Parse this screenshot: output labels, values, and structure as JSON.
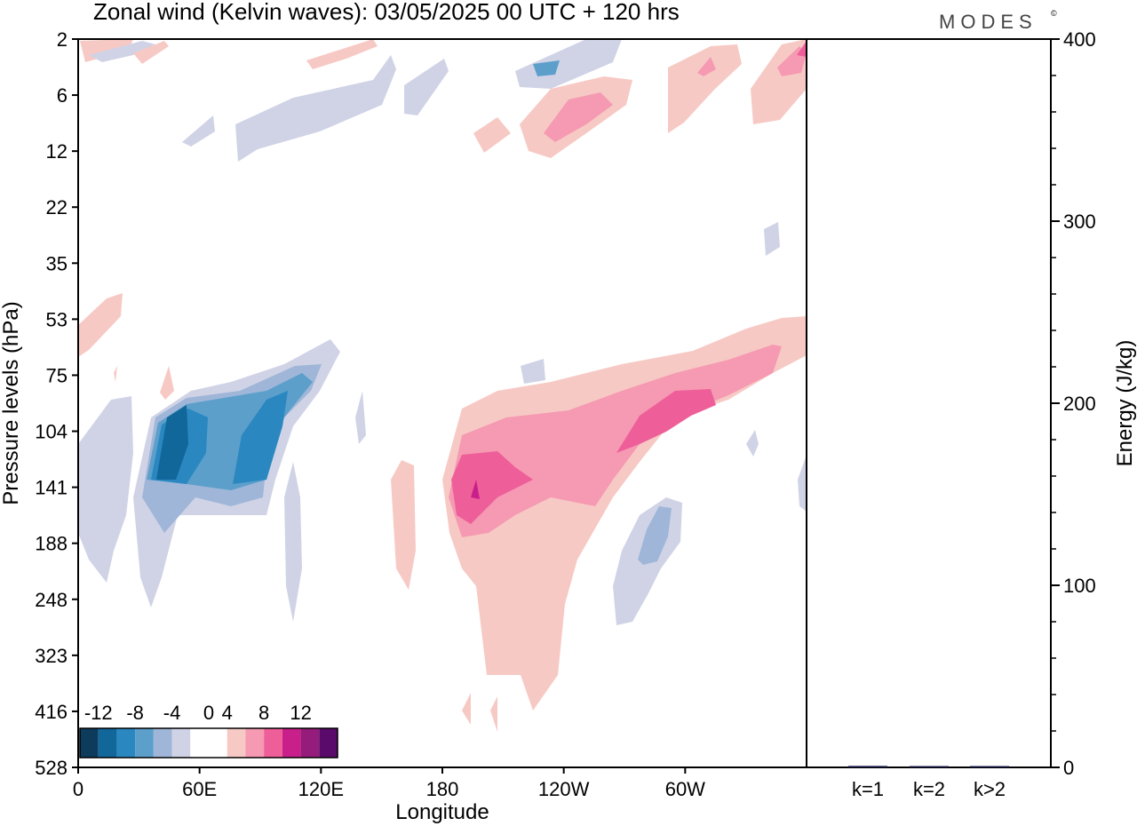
{
  "title": "Zonal wind (Kelvin waves):  03/05/2025  00 UTC  + 120 hrs",
  "brand": "MODES",
  "brand_mark": "©",
  "colors": {
    "neg": [
      "#0d3b5c",
      "#11669a",
      "#2a87c0",
      "#5c9fcb",
      "#9fb6d8",
      "#d0d3e6"
    ],
    "pos": [
      "#f7c9c4",
      "#f59ab2",
      "#ee5f9a",
      "#c81f8a",
      "#951c7a",
      "#5a0a6b"
    ],
    "zero": "#ffffff",
    "frame": "#000000"
  },
  "chart_data": [
    {
      "type": "heatmap",
      "title": "Zonal wind (Kelvin waves):  03/05/2025  00 UTC  + 120 hrs",
      "xlabel": "Longitude",
      "ylabel": "Pressure levels (hPa)",
      "x_ticks": [
        "0",
        "60E",
        "120E",
        "180",
        "120W",
        "60W"
      ],
      "x_tick_values": [
        0,
        60,
        120,
        180,
        240,
        300
      ],
      "xlim": [
        0,
        360
      ],
      "y_ticks": [
        "2",
        "6",
        "12",
        "22",
        "35",
        "53",
        "75",
        "104",
        "141",
        "188",
        "248",
        "323",
        "416",
        "528"
      ],
      "y_scale": "model levels (non-linear)",
      "colorbar_labels": [
        "-12",
        "-8",
        "-4",
        "0",
        "4",
        "8",
        "12"
      ],
      "colorbar_levels": [
        -14,
        -12,
        -10,
        -8,
        -6,
        -4,
        -2,
        2,
        4,
        6,
        8,
        10,
        12,
        14
      ],
      "features": [
        {
          "sign": "negative",
          "peak": -10,
          "lon": 48,
          "level": "110-141"
        },
        {
          "sign": "negative",
          "peak": -8,
          "lon": 90,
          "level": "104-141"
        },
        {
          "sign": "positive",
          "peak": 8,
          "lon": 285,
          "level": "90-110"
        },
        {
          "sign": "positive",
          "peak": 6,
          "lon": 200,
          "level": "104-188"
        },
        {
          "sign": "positive",
          "peak": 6,
          "lon": 230,
          "level": "6-12"
        },
        {
          "sign": "negative",
          "peak": -4,
          "lon": 285,
          "level": "141-188"
        }
      ]
    },
    {
      "type": "bar",
      "categories": [
        "k=1",
        "k=2",
        "k>2"
      ],
      "values": [
        0.8,
        0.3,
        0.5
      ],
      "ylabel": "Energy (J/kg)",
      "ylim": [
        0,
        400
      ],
      "y_ticks": [
        "0",
        "100",
        "200",
        "300",
        "400"
      ]
    }
  ]
}
